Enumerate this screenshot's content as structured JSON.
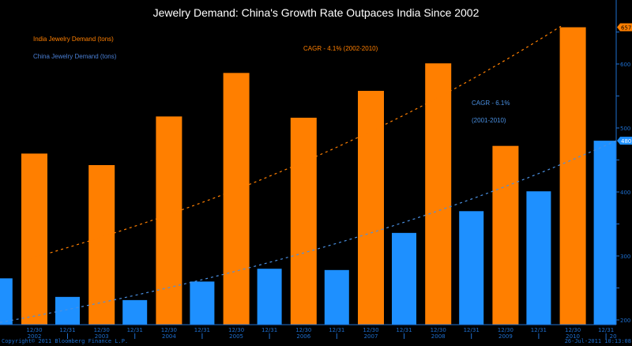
{
  "chart_data": {
    "type": "bar",
    "title": "Jewelry Demand: China's Growth Rate Outpaces India Since 2002",
    "ylim": [
      193,
      700
    ],
    "y_ticks": [
      200,
      300,
      400,
      500,
      600
    ],
    "grid": false,
    "axis_side": "right",
    "series": [
      {
        "name": "India Jewelry Demand (tons)",
        "color": "#ff7f00",
        "dates": [
          "12/30/2002",
          "12/30/2003",
          "12/30/2004",
          "12/30/2005",
          "12/30/2006",
          "12/30/2007",
          "12/30/2008",
          "12/30/2009",
          "12/30/2010"
        ],
        "values": [
          460,
          442,
          518,
          586,
          516,
          558,
          601,
          472,
          657.4
        ],
        "last_value_label": "657.4"
      },
      {
        "name": "China Jewelry Demand (tons)",
        "color": "#1e90ff",
        "dates": [
          "12/31/2001",
          "12/31/2002",
          "12/31/2003",
          "12/31/2004",
          "12/31/2005",
          "12/31/2006",
          "12/31/2007",
          "12/31/2008",
          "12/31/2009",
          "12/31/2010"
        ],
        "values": [
          265,
          236,
          231,
          260,
          280,
          278,
          336,
          370,
          401,
          480.1
        ],
        "last_value_label": "480.1"
      }
    ],
    "trendlines": [
      {
        "series": "India Jewelry Demand (tons)",
        "label": "CAGR - 4.1% (2002-2010)",
        "start": 293,
        "end": 659,
        "color": "#ff7f00"
      },
      {
        "series": "China Jewelry Demand (tons)",
        "label": "CAGR - 6.1%",
        "label2": "(2001-2010)",
        "start": 196,
        "end": 480,
        "color": "#4a90e2"
      }
    ],
    "x_tick_labels": {
      "orange": "12/30",
      "blue": "12/31",
      "years": [
        "2002",
        "2003",
        "2004",
        "2005",
        "2006",
        "2007",
        "2008",
        "2009",
        "2010"
      ],
      "last_year_truncated": "20"
    }
  },
  "footer": {
    "copyright": "Copyright© 2011 Bloomberg Finance L.P.",
    "timestamp": "26-Jul-2011 10:13:08"
  }
}
